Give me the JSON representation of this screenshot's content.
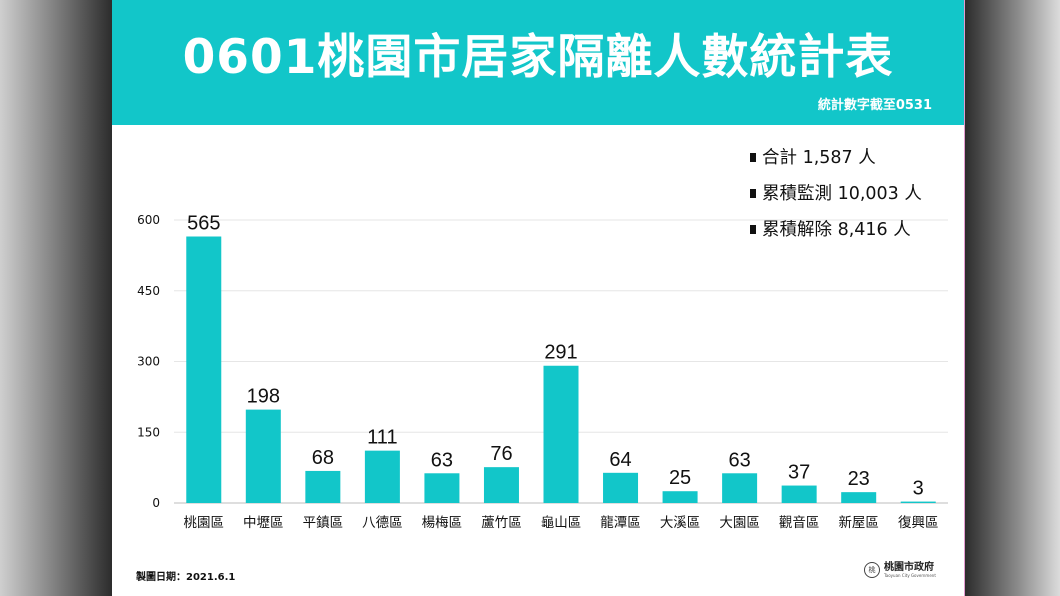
{
  "header": {
    "title": "0601桃園市居家隔離人數統計表",
    "subtitle": "統計數字截至0531"
  },
  "summary": [
    {
      "label": "合計",
      "value": "1,587",
      "unit": "人"
    },
    {
      "label": "累積監測",
      "value": "10,003",
      "unit": "人"
    },
    {
      "label": "累積解除",
      "value": "8,416",
      "unit": "人"
    }
  ],
  "footer": {
    "date": "製圖日期：2021.6.1",
    "org": "桃園市政府",
    "org_en": "Taoyuan City Government"
  },
  "chart_data": {
    "type": "bar",
    "title": "0601桃園市居家隔離人數統計表",
    "categories": [
      "桃園區",
      "中壢區",
      "平鎮區",
      "八德區",
      "楊梅區",
      "蘆竹區",
      "龜山區",
      "龍潭區",
      "大溪區",
      "大園區",
      "觀音區",
      "新屋區",
      "復興區"
    ],
    "values": [
      565,
      198,
      68,
      111,
      63,
      76,
      291,
      64,
      25,
      63,
      37,
      23,
      3
    ],
    "yticks": [
      0,
      150,
      300,
      450,
      600
    ],
    "ylim": [
      0,
      600
    ],
    "xlabel": "",
    "ylabel": "",
    "grid": true,
    "data_labels": true,
    "bar_color": "#12c6c9"
  }
}
